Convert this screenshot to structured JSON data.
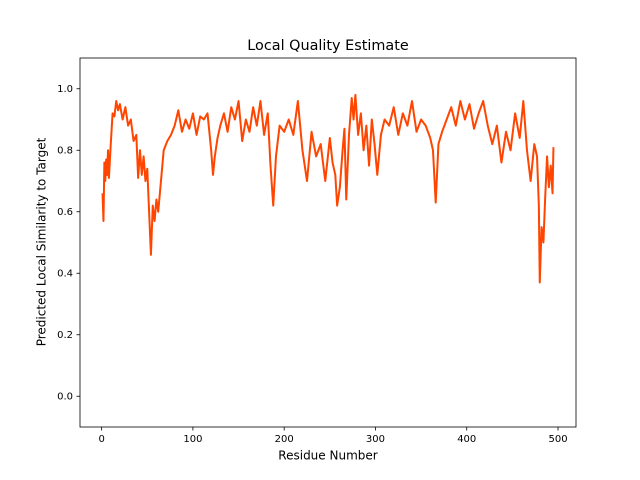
{
  "chart_data": {
    "type": "line",
    "title": "Local Quality Estimate",
    "xlabel": "Residue Number",
    "ylabel": "Predicted Local Similarity to Target",
    "x": [
      1,
      2,
      3,
      4,
      5,
      6,
      7,
      8,
      10,
      12,
      14,
      16,
      18,
      20,
      23,
      26,
      29,
      32,
      35,
      38,
      40,
      42,
      44,
      46,
      48,
      50,
      52,
      54,
      56,
      58,
      60,
      62,
      65,
      68,
      72,
      76,
      80,
      84,
      88,
      92,
      96,
      100,
      104,
      108,
      112,
      116,
      120,
      122,
      124,
      127,
      130,
      134,
      138,
      142,
      146,
      150,
      154,
      158,
      162,
      166,
      170,
      174,
      178,
      182,
      185,
      188,
      191,
      195,
      200,
      205,
      210,
      215,
      220,
      225,
      230,
      235,
      240,
      245,
      250,
      253,
      256,
      258,
      261,
      264,
      266,
      268,
      271,
      274,
      276,
      278,
      281,
      284,
      287,
      290,
      293,
      296,
      299,
      302,
      306,
      310,
      315,
      320,
      325,
      330,
      335,
      340,
      345,
      350,
      355,
      360,
      363,
      366,
      369,
      373,
      378,
      383,
      388,
      393,
      398,
      403,
      408,
      413,
      418,
      423,
      428,
      433,
      438,
      443,
      448,
      453,
      458,
      462,
      466,
      470,
      474,
      477,
      479,
      480,
      482,
      484,
      486,
      488,
      490,
      492,
      494,
      495
    ],
    "series": [
      {
        "color": "#ff4500",
        "values": [
          0.66,
          0.57,
          0.76,
          0.7,
          0.77,
          0.72,
          0.8,
          0.71,
          0.82,
          0.92,
          0.91,
          0.96,
          0.93,
          0.95,
          0.9,
          0.94,
          0.88,
          0.9,
          0.83,
          0.85,
          0.71,
          0.8,
          0.72,
          0.78,
          0.7,
          0.74,
          0.6,
          0.46,
          0.62,
          0.57,
          0.64,
          0.6,
          0.7,
          0.8,
          0.83,
          0.85,
          0.88,
          0.93,
          0.86,
          0.9,
          0.87,
          0.92,
          0.85,
          0.91,
          0.9,
          0.92,
          0.8,
          0.72,
          0.78,
          0.84,
          0.88,
          0.92,
          0.86,
          0.94,
          0.9,
          0.96,
          0.83,
          0.9,
          0.86,
          0.94,
          0.88,
          0.96,
          0.85,
          0.92,
          0.75,
          0.62,
          0.78,
          0.88,
          0.86,
          0.9,
          0.85,
          0.96,
          0.8,
          0.7,
          0.86,
          0.78,
          0.82,
          0.7,
          0.84,
          0.76,
          0.72,
          0.62,
          0.68,
          0.8,
          0.87,
          0.64,
          0.85,
          0.97,
          0.9,
          0.98,
          0.85,
          0.92,
          0.8,
          0.88,
          0.75,
          0.9,
          0.82,
          0.72,
          0.85,
          0.9,
          0.88,
          0.94,
          0.85,
          0.92,
          0.88,
          0.96,
          0.86,
          0.9,
          0.88,
          0.84,
          0.8,
          0.63,
          0.82,
          0.86,
          0.9,
          0.94,
          0.88,
          0.96,
          0.9,
          0.95,
          0.87,
          0.92,
          0.96,
          0.88,
          0.82,
          0.88,
          0.76,
          0.86,
          0.8,
          0.92,
          0.84,
          0.96,
          0.8,
          0.7,
          0.82,
          0.78,
          0.62,
          0.37,
          0.55,
          0.5,
          0.65,
          0.78,
          0.68,
          0.75,
          0.66,
          0.81
        ]
      }
    ],
    "xlim": [
      -23.7,
      519.7
    ],
    "xticks": [
      0,
      100,
      200,
      300,
      400,
      500
    ],
    "ylim": [
      -0.1,
      1.1
    ],
    "yticks": [
      {
        "value": 0,
        "label": "0.0"
      },
      {
        "value": 0.2,
        "label": "0.2"
      },
      {
        "value": 0.4,
        "label": "0.4"
      },
      {
        "value": 0.6,
        "label": "0.6"
      },
      {
        "value": 0.8,
        "label": "0.8"
      },
      {
        "value": 1,
        "label": "1.0"
      }
    ]
  }
}
